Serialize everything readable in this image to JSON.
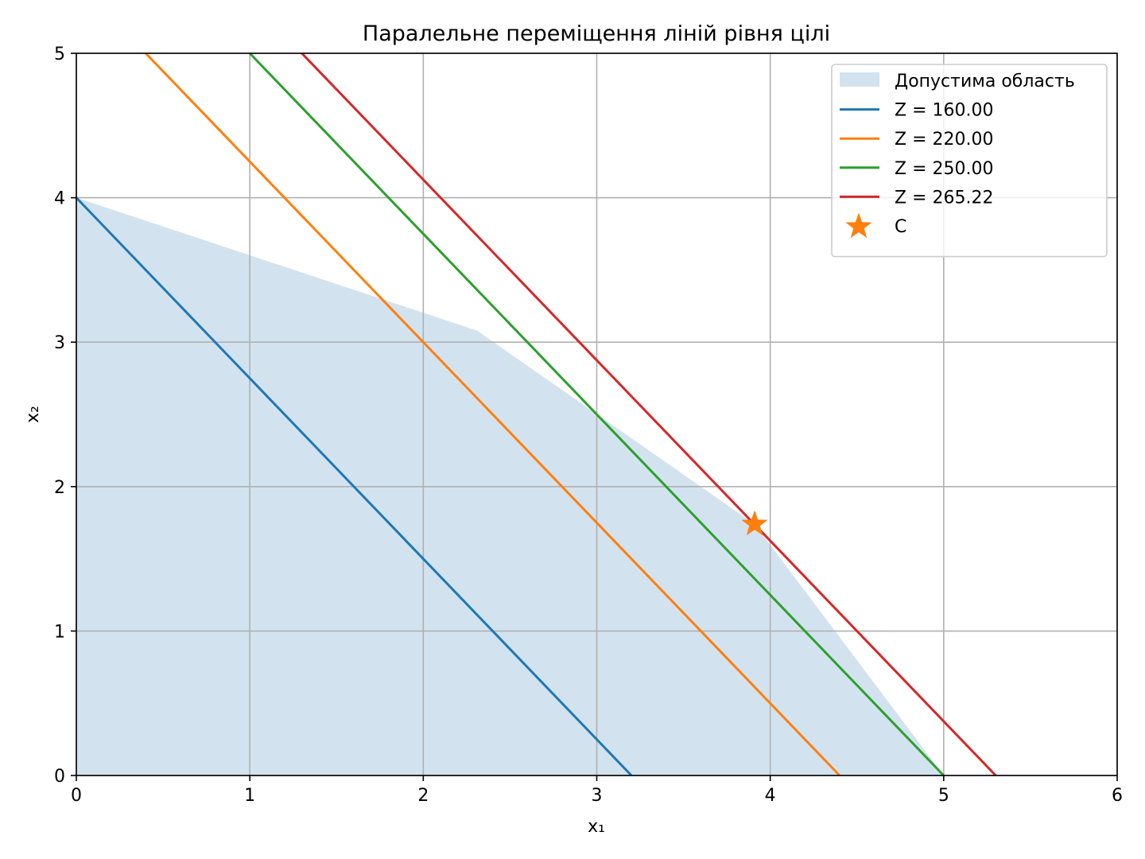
{
  "chart_data": {
    "type": "line",
    "title": "Паралельне переміщення ліній рівня цілі",
    "xlabel": "x₁",
    "ylabel": "x₂",
    "xlim": [
      0,
      6
    ],
    "ylim": [
      0,
      5
    ],
    "xticks": [
      "0",
      "1",
      "2",
      "3",
      "4",
      "5",
      "6"
    ],
    "yticks": [
      "0",
      "1",
      "2",
      "3",
      "4",
      "5"
    ],
    "grid": true,
    "legend_position": "top-right",
    "feasible_region": {
      "name": "Допустима область",
      "color": "#d2e3ef",
      "polygon": [
        [
          0,
          0
        ],
        [
          0,
          4
        ],
        [
          2.31,
          3.08
        ],
        [
          3.91,
          1.74
        ],
        [
          5,
          0
        ]
      ]
    },
    "series": [
      {
        "name": "Z = 160.00",
        "color": "#1f77b4",
        "points": [
          [
            0,
            4
          ],
          [
            3.2,
            0
          ]
        ]
      },
      {
        "name": "Z = 220.00",
        "color": "#ff7f0e",
        "points": [
          [
            0.4,
            5
          ],
          [
            4.4,
            0
          ]
        ]
      },
      {
        "name": "Z = 250.00",
        "color": "#2ca02c",
        "points": [
          [
            1.0,
            5
          ],
          [
            5.0,
            0
          ]
        ]
      },
      {
        "name": "Z = 265.22",
        "color": "#d62728",
        "points": [
          [
            1.3,
            5
          ],
          [
            5.3,
            0
          ]
        ]
      }
    ],
    "points": [
      {
        "name": "C",
        "x": 3.91,
        "y": 1.74,
        "color": "#ff7f0e",
        "marker": "star"
      }
    ]
  }
}
